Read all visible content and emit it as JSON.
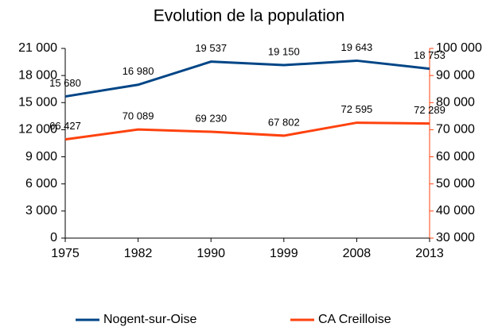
{
  "chart_data": {
    "type": "line",
    "title": "Evolution de la population",
    "categories": [
      "1975",
      "1982",
      "1990",
      "1999",
      "2008",
      "2013"
    ],
    "series": [
      {
        "name": "Nogent-sur-Oise",
        "color": "#004586",
        "values": [
          15680,
          16980,
          19537,
          19150,
          19643,
          18753
        ],
        "value_labels": [
          "15 680",
          "16 980",
          "19 537",
          "19 150",
          "19 643",
          "18 753"
        ]
      },
      {
        "name": "CA Creilloise",
        "color": "#ff420e",
        "axis": "y2",
        "values": [
          66427,
          70089,
          69230,
          67802,
          72595,
          72289
        ],
        "value_labels": [
          "66 427",
          "70 089",
          "69 230",
          "67 802",
          "72 595",
          "72 289"
        ]
      }
    ],
    "ylim": [
      0,
      21000
    ],
    "yticks": [
      {
        "value": 0,
        "label": "0"
      },
      {
        "value": 3000,
        "label": "3 000"
      },
      {
        "value": 6000,
        "label": "6 000"
      },
      {
        "value": 9000,
        "label": "9 000"
      },
      {
        "value": 12000,
        "label": "12 000"
      },
      {
        "value": 15000,
        "label": "15 000"
      },
      {
        "value": 18000,
        "label": "18 000"
      },
      {
        "value": 21000,
        "label": "21 000"
      }
    ],
    "y2lim": [
      30000,
      100000
    ],
    "y2ticks": [
      {
        "value": 30000,
        "label": "30 000"
      },
      {
        "value": 40000,
        "label": "40 000"
      },
      {
        "value": 50000,
        "label": "50 000"
      },
      {
        "value": 60000,
        "label": "60 000"
      },
      {
        "value": 70000,
        "label": "70 000"
      },
      {
        "value": 80000,
        "label": "80 000"
      },
      {
        "value": 90000,
        "label": "90 000"
      },
      {
        "value": 100000,
        "label": "100 000"
      }
    ],
    "y2_axis_color": "#ff420e",
    "grid": false,
    "legend": "bottom"
  }
}
